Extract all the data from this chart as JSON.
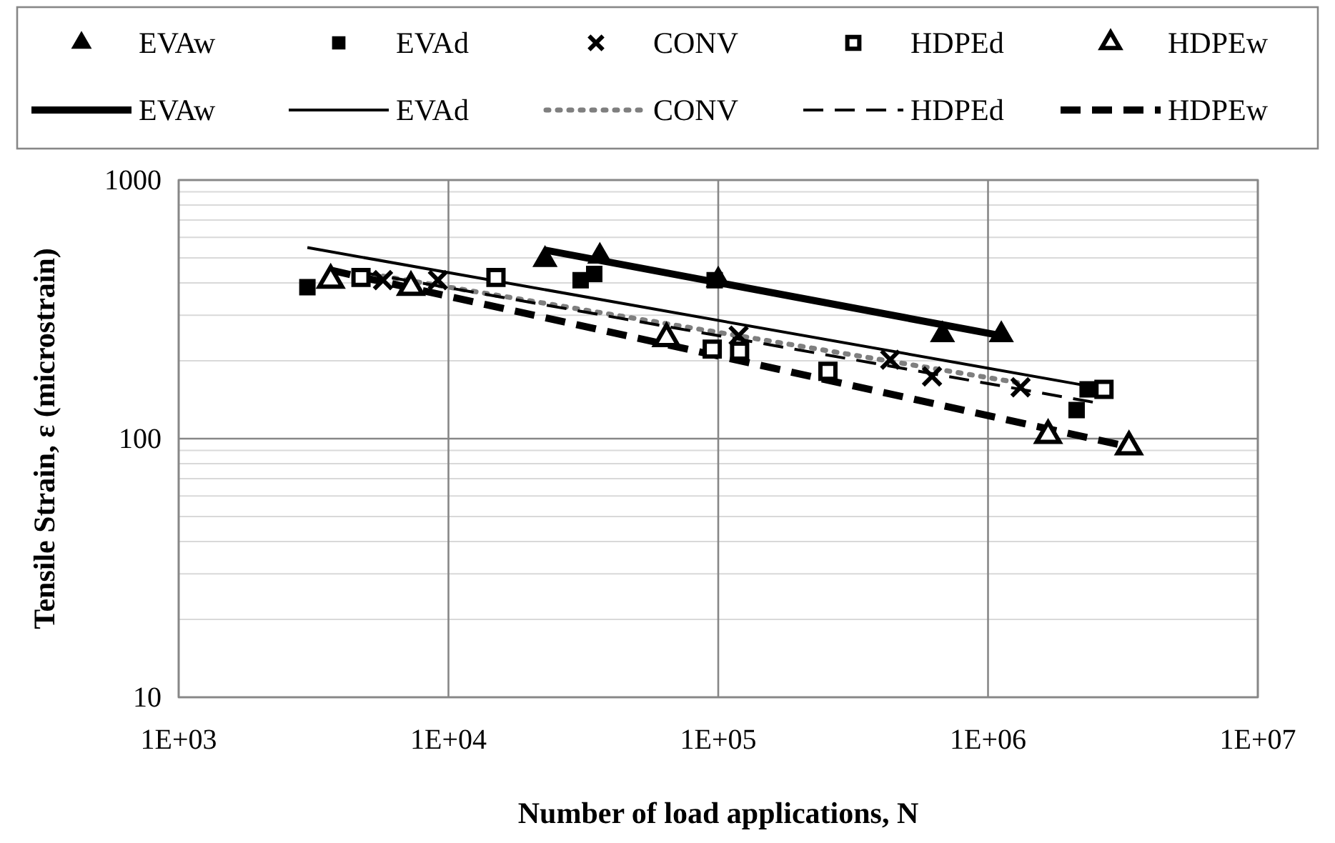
{
  "chart_data": {
    "type": "scatter",
    "xlabel": "Number of load applications, N",
    "ylabel": "Tensile Strain, ε (microstrain)",
    "log": "xy",
    "grid": true,
    "legend": "top",
    "xlim": [
      1000,
      10000000
    ],
    "xticks": [
      {
        "value": 1000,
        "label": "1E+03"
      },
      {
        "value": 10000,
        "label": "1E+04"
      },
      {
        "value": 100000,
        "label": "1E+05"
      },
      {
        "value": 1000000,
        "label": "1E+06"
      },
      {
        "value": 10000000,
        "label": "1E+07"
      }
    ],
    "ylim": [
      10,
      1000
    ],
    "yticks": [
      10,
      100,
      1000
    ],
    "series": [
      {
        "name": "EVAw",
        "marker": "triangle",
        "color": "#000000",
        "x": [
          22800,
          36400,
          100000,
          678000,
          1120000
        ],
        "values": [
          492,
          507,
          410,
          252,
          252
        ]
      },
      {
        "name": "EVAd",
        "marker": "square",
        "color": "#000000",
        "x": [
          3000,
          30900,
          34700,
          97000,
          2130000,
          2340000
        ],
        "values": [
          385,
          410,
          433,
          410,
          129,
          155
        ]
      },
      {
        "name": "CONV",
        "marker": "cross",
        "color": "#000000",
        "x": [
          5720,
          9140,
          119000,
          434000,
          620000,
          1320000
        ],
        "values": [
          410,
          410,
          250,
          202,
          174,
          158
        ]
      },
      {
        "name": "HDPEd",
        "marker": "square",
        "color": "#000000",
        "x": [
          4740,
          15000,
          95000,
          120000,
          255000,
          2690000
        ],
        "values": [
          420,
          420,
          222,
          218,
          182,
          155
        ]
      },
      {
        "name": "HDPEw",
        "marker": "triangle",
        "color": "#000000",
        "x": [
          3660,
          7260,
          64300,
          1670000,
          3330000
        ],
        "values": [
          410,
          385,
          244,
          103,
          93
        ]
      },
      {
        "name": "EVAw",
        "type": "line",
        "line_style": "solid",
        "color": "#000000",
        "x": [
          22800,
          1120000
        ],
        "values": [
          536,
          250
        ]
      },
      {
        "name": "EVAd",
        "type": "line",
        "line_style": "solid",
        "color": "#000000",
        "x": [
          3000,
          2340000
        ],
        "values": [
          548,
          160
        ]
      },
      {
        "name": "CONV",
        "type": "line",
        "line_style": "dotted",
        "color": "#7f7f7f",
        "x": [
          5720,
          1320000
        ],
        "values": [
          425,
          164
        ]
      },
      {
        "name": "HDPEd",
        "type": "line",
        "line_style": "dashed",
        "color": "#000000",
        "x": [
          4740,
          2690000
        ],
        "values": [
          440,
          136
        ]
      },
      {
        "name": "HDPEw",
        "type": "line",
        "line_style": "dashed",
        "color": "#000000",
        "x": [
          3660,
          3330000
        ],
        "values": [
          448,
          93
        ]
      }
    ]
  }
}
